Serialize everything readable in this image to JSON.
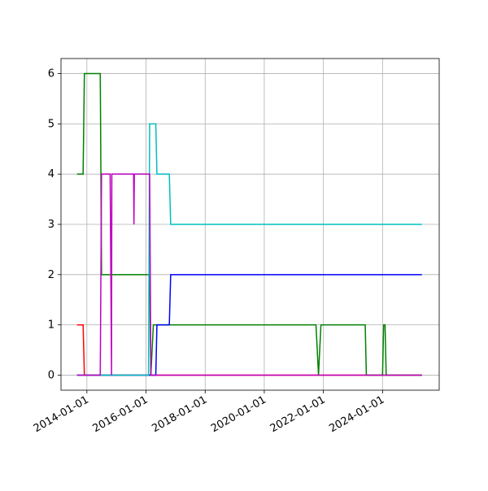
{
  "chart_data": {
    "type": "line",
    "xlim": [
      "2013-02-15",
      "2025-12-01"
    ],
    "xticks": [
      "2014-01-01",
      "2016-01-01",
      "2018-01-01",
      "2020-01-01",
      "2022-01-01",
      "2024-01-01"
    ],
    "ylim": [
      -0.3,
      6.3
    ],
    "yticks": [
      0,
      1,
      2,
      3,
      4,
      5,
      6
    ],
    "grid": true,
    "series": [
      {
        "color": "#ff0000",
        "x": [
          "2013-09-01",
          "2013-11-15",
          "2013-12-01",
          "2025-05-01"
        ],
        "values": [
          1,
          1,
          0,
          0
        ]
      },
      {
        "color": "#008000",
        "x": [
          "2013-09-01",
          "2013-11-15",
          "2013-12-01",
          "2014-06-15",
          "2014-07-01",
          "2016-02-15",
          "2016-03-01",
          "2016-04-01",
          "2021-10-01",
          "2021-11-01",
          "2021-12-01",
          "2023-06-01",
          "2023-06-15",
          "2024-01-01",
          "2024-01-15",
          "2024-02-01",
          "2024-02-15",
          "2025-05-01"
        ],
        "values": [
          4,
          4,
          6,
          6,
          2,
          2,
          0,
          1,
          1,
          0,
          1,
          1,
          0,
          0,
          1,
          1,
          0,
          0
        ]
      },
      {
        "color": "#0000ff",
        "x": [
          "2013-09-01",
          "2016-05-01",
          "2016-05-15",
          "2016-10-15",
          "2016-11-01",
          "2025-05-01"
        ],
        "values": [
          0,
          0,
          1,
          1,
          2,
          2
        ]
      },
      {
        "color": "#00bfbf",
        "x": [
          "2013-09-01",
          "2016-02-01",
          "2016-02-15",
          "2016-05-01",
          "2016-05-15",
          "2016-10-15",
          "2016-11-01",
          "2025-05-01"
        ],
        "values": [
          0,
          0,
          5,
          5,
          4,
          4,
          3,
          3
        ]
      },
      {
        "color": "#bf00bf",
        "x": [
          "2013-09-01",
          "2014-06-15",
          "2014-07-01",
          "2014-10-15",
          "2014-11-01",
          "2014-11-05",
          "2015-08-01",
          "2015-08-05",
          "2015-08-10",
          "2016-02-15",
          "2016-03-01",
          "2025-05-01"
        ],
        "values": [
          0,
          0,
          4,
          4,
          0,
          4,
          4,
          3,
          4,
          4,
          0,
          0
        ]
      }
    ]
  }
}
